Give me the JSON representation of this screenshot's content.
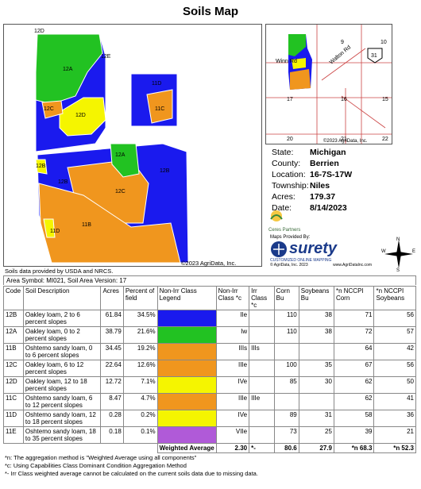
{
  "title": "Soils Map",
  "main_map": {
    "labels": {
      "l12D_top": "12D",
      "l12E": "12E",
      "l12A_l": "12A",
      "l11D_top": "11D",
      "l11C_r": "11C",
      "l12C_l": "12C",
      "l12D_mid": "12D",
      "l12A_mid": "12A",
      "l12B_l": "12B",
      "l12B_r": "12B",
      "l12C_mid": "12C",
      "l11B": "11B",
      "l11D_bot": "11D",
      "l12B_far": "12B"
    },
    "copyright": "©2023 AgriData, Inc."
  },
  "location_map": {
    "labels": {
      "n9": "9",
      "n10": "10",
      "road1": "Walton Rd",
      "road2": "Winn Rd",
      "n17": "17",
      "n16": "16",
      "n15": "15",
      "n20": "20",
      "n21": "21",
      "n22": "22",
      "shield": "31",
      "copyright": "©2023 AgriData, Inc."
    }
  },
  "info": {
    "state_k": "State:",
    "state_v": "Michigan",
    "county_k": "County:",
    "county_v": "Berrien",
    "location_k": "Location:",
    "location_v": "16-7S-17W",
    "township_k": "Township:",
    "township_v": "Niles",
    "acres_k": "Acres:",
    "acres_v": "179.37",
    "date_k": "Date:",
    "date_v": "8/14/2023"
  },
  "logos": {
    "ceres": "Ceres Partners",
    "maps_by": "Maps Provided By:",
    "surety": "surety",
    "surety_tag": "CUSTOMIZED ONLINE MAPPING",
    "surety_copy": "© AgriData, Inc. 2023",
    "surety_url": "www.AgriDataInc.com",
    "n": "N",
    "s": "S",
    "e": "E",
    "w": "W"
  },
  "source": "Soils data provided by USDA and NRCS.",
  "area_line": "Area Symbol: MI021, Soil Area Version: 17",
  "table": {
    "headers": [
      "Code",
      "Soil Description",
      "Acres",
      "Percent of field",
      "Non-Irr Class Legend",
      "Non-Irr Class *c",
      "Irr Class *c",
      "Corn Bu",
      "Soybeans Bu",
      "*n NCCPI Corn",
      "*n NCCPI Soybeans"
    ],
    "rows": [
      {
        "code": "12B",
        "desc": "Oakley loam, 2 to 6 percent slopes",
        "acres": "61.84",
        "pct": "34.5%",
        "color": "#1a1aee",
        "nonirr": "IIe",
        "irr": "",
        "corn": "110",
        "soy": "38",
        "nc": "71",
        "ns": "56"
      },
      {
        "code": "12A",
        "desc": "Oakley loam, 0 to 2 percent slopes",
        "acres": "38.79",
        "pct": "21.6%",
        "color": "#22c222",
        "nonirr": "Iw",
        "irr": "",
        "corn": "110",
        "soy": "38",
        "nc": "72",
        "ns": "57"
      },
      {
        "code": "11B",
        "desc": "Oshtemo sandy loam, 0 to 6 percent slopes",
        "acres": "34.45",
        "pct": "19.2%",
        "color": "#f0961e",
        "nonirr": "IIIs",
        "irr": "IIIs",
        "corn": "",
        "soy": "",
        "nc": "64",
        "ns": "42"
      },
      {
        "code": "12C",
        "desc": "Oakley loam, 6 to 12 percent slopes",
        "acres": "22.64",
        "pct": "12.6%",
        "color": "#f0961e",
        "nonirr": "IIIe",
        "irr": "",
        "corn": "100",
        "soy": "35",
        "nc": "67",
        "ns": "56"
      },
      {
        "code": "12D",
        "desc": "Oakley loam, 12 to 18 percent slopes",
        "acres": "12.72",
        "pct": "7.1%",
        "color": "#f5f500",
        "nonirr": "IVe",
        "irr": "",
        "corn": "85",
        "soy": "30",
        "nc": "62",
        "ns": "50"
      },
      {
        "code": "11C",
        "desc": "Oshtemo sandy loam, 6 to 12 percent slopes",
        "acres": "8.47",
        "pct": "4.7%",
        "color": "#f0961e",
        "nonirr": "IIIe",
        "irr": "IIIe",
        "corn": "",
        "soy": "",
        "nc": "62",
        "ns": "41"
      },
      {
        "code": "11D",
        "desc": "Oshtemo sandy loam, 12 to 18 percent slopes",
        "acres": "0.28",
        "pct": "0.2%",
        "color": "#f5f500",
        "nonirr": "IVe",
        "irr": "",
        "corn": "89",
        "soy": "31",
        "nc": "58",
        "ns": "36"
      },
      {
        "code": "11E",
        "desc": "Oshtemo sandy loam, 18 to 35 percent slopes",
        "acres": "0.18",
        "pct": "0.1%",
        "color": "#b05ad8",
        "nonirr": "VIIe",
        "irr": "",
        "corn": "73",
        "soy": "25",
        "nc": "39",
        "ns": "21"
      }
    ],
    "weighted": {
      "label": "Weighted Average",
      "nonirr": "2.30",
      "irr": "*-",
      "corn": "80.6",
      "soy": "27.9",
      "nc": "*n 68.3",
      "ns": "*n 52.3"
    }
  },
  "footnotes": [
    "*n: The aggregation method is \"Weighted Average using all components\"",
    "*c: Using Capabilities Class Dominant Condition Aggregation Method",
    "*- Irr Class weighted average cannot be calculated on the current soils data due to missing data."
  ],
  "colors": {
    "blue": "#1a1aee",
    "green": "#22c222",
    "orange": "#f0961e",
    "yellow": "#f5f500",
    "purple": "#b05ad8"
  }
}
